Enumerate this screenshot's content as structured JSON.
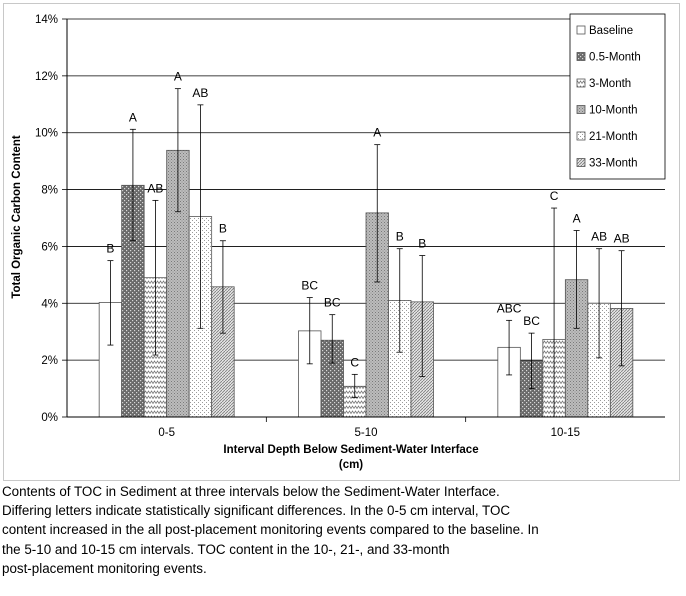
{
  "chart_data": {
    "type": "bar",
    "title": "",
    "xlabel": "Interval Depth Below Sediment-Water Interface\n(cm)",
    "ylabel": "Total Organic Carbon Content",
    "categories": [
      "0-5",
      "5-10",
      "10-15"
    ],
    "ylim": [
      0,
      0.14
    ],
    "yticks": [
      "0%",
      "2%",
      "4%",
      "6%",
      "8%",
      "10%",
      "12%",
      "14%"
    ],
    "grid": true,
    "legend_position": "top-right",
    "series": [
      {
        "name": "Baseline",
        "pattern": "none",
        "color": "#ffffff",
        "values": [
          0.0403,
          0.0303,
          0.0245
        ],
        "error_low": [
          0.0253,
          0.0187,
          0.0148
        ],
        "error_high": [
          0.055,
          0.042,
          0.034
        ],
        "labels": [
          "B",
          "BC",
          "ABC"
        ]
      },
      {
        "name": "0.5-Month",
        "pattern": "dark-dots",
        "color": "#6e6e6e",
        "values": [
          0.0815,
          0.027,
          0.0198
        ],
        "error_low": [
          0.062,
          0.019,
          0.01
        ],
        "error_high": [
          0.1012,
          0.036,
          0.0295
        ],
        "labels": [
          "A",
          "BC",
          "BC"
        ]
      },
      {
        "name": "3-Month",
        "pattern": "zigzag",
        "color": "#ffffff",
        "values": [
          0.049,
          0.0108,
          0.0273
        ],
        "error_low": [
          0.0218,
          0.0068,
          0.0
        ],
        "error_high": [
          0.0762,
          0.015,
          0.0735
        ],
        "labels": [
          "AB",
          "C",
          "C"
        ]
      },
      {
        "name": "10-Month",
        "pattern": "gray-dots",
        "color": "#b4b4b4",
        "values": [
          0.0938,
          0.0718,
          0.0483
        ],
        "error_low": [
          0.0722,
          0.0475,
          0.0312
        ],
        "error_high": [
          0.1155,
          0.0958,
          0.0656
        ],
        "labels": [
          "A",
          "A",
          "A"
        ]
      },
      {
        "name": "21-Month",
        "pattern": "light-dots",
        "color": "#f2f2f2",
        "values": [
          0.0705,
          0.041,
          0.04
        ],
        "error_low": [
          0.0312,
          0.0228,
          0.0208
        ],
        "error_high": [
          0.1098,
          0.0592,
          0.0592
        ],
        "labels": [
          "AB",
          "B",
          "AB"
        ]
      },
      {
        "name": "33-Month",
        "pattern": "diagonal",
        "color": "#d0d0d0",
        "values": [
          0.0458,
          0.0405,
          0.0382
        ],
        "error_low": [
          0.0295,
          0.0142,
          0.018
        ],
        "error_high": [
          0.062,
          0.0568,
          0.0585
        ],
        "labels": [
          "B",
          "B",
          "AB"
        ]
      }
    ]
  },
  "caption": "Contents of TOC in Sediment at three intervals below the Sediment-Water Interface.\nDiffering letters indicate statistically significant differences.  In the 0-5 cm interval, TOC\ncontent increased in the all post-placement monitoring events compared to the baseline.  In\nthe 5-10 and 10-15 cm intervals.  TOC content in the 10-, 21-, and 33-month\npost-placement monitoring events."
}
